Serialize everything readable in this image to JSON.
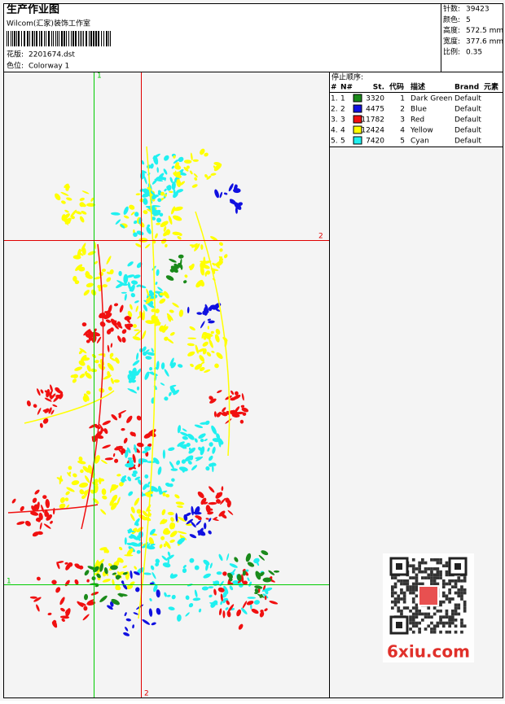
{
  "header": {
    "title": "生产作业图",
    "studio": "Wilcom(汇家)装饰工作室",
    "design_label": "花版:",
    "design_file": "2201674.dst",
    "colorway_label": "色位:",
    "colorway": "Colorway 1"
  },
  "stats": [
    {
      "label": "针数:",
      "value": "39423"
    },
    {
      "label": "颜色:",
      "value": "5"
    },
    {
      "label": "高度:",
      "value": "572.5 mm"
    },
    {
      "label": "宽度:",
      "value": "377.6 mm"
    },
    {
      "label": "比例:",
      "value": "0.35"
    }
  ],
  "stop_sequence": {
    "title": "停止顺序:",
    "columns": [
      "#",
      "N#",
      "St.",
      "代码",
      "描述",
      "Brand",
      "元素"
    ],
    "rows": [
      {
        "index": "1.",
        "n": "1",
        "color": "#1a8a1a",
        "stitches": "3320",
        "code": "1",
        "description": "Dark Green",
        "brand": "Default"
      },
      {
        "index": "2.",
        "n": "2",
        "color": "#1010e0",
        "stitches": "4475",
        "code": "2",
        "description": "Blue",
        "brand": "Default"
      },
      {
        "index": "3.",
        "n": "3",
        "color": "#f01010",
        "stitches": "11782",
        "code": "3",
        "description": "Red",
        "brand": "Default"
      },
      {
        "index": "4.",
        "n": "4",
        "color": "#ffff00",
        "stitches": "12424",
        "code": "4",
        "description": "Yellow",
        "brand": "Default"
      },
      {
        "index": "5.",
        "n": "5",
        "color": "#20f0f0",
        "stitches": "7420",
        "code": "5",
        "description": "Cyan",
        "brand": "Default"
      }
    ]
  },
  "guides": [
    {
      "label": "1",
      "color": "#00cc00"
    },
    {
      "label": "2",
      "color": "#e00000"
    },
    {
      "label": "1",
      "color": "#00cc00"
    },
    {
      "label": "2",
      "color": "#e00000"
    }
  ],
  "watermark": "6xiu.com"
}
